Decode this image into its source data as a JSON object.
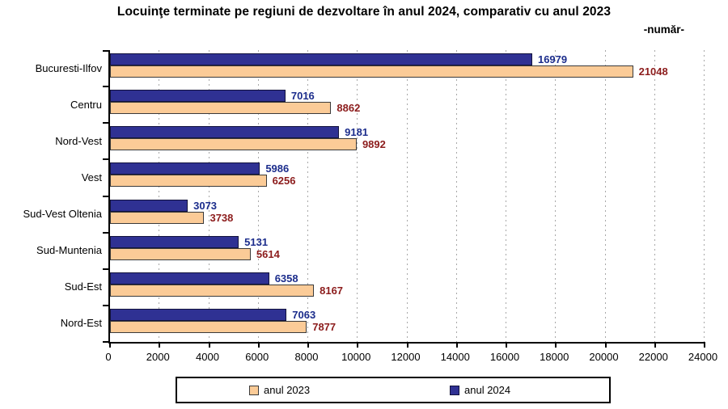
{
  "chart_data": {
    "type": "bar",
    "orientation": "horizontal",
    "title": "Locuinţe terminate pe regiuni de dezvoltare în anul 2024, comparativ cu anul 2023",
    "unit_label": "-număr-",
    "categories": [
      "Bucuresti-Ilfov",
      "Centru",
      "Nord-Vest",
      "Vest",
      "Sud-Vest Oltenia",
      "Sud-Muntenia",
      "Sud-Est",
      "Nord-Est"
    ],
    "series": [
      {
        "name": "anul 2023",
        "color": "#FBCB97",
        "border_color": "#3a3a3a",
        "label_color": "#8C1C1C",
        "values": [
          21048,
          8862,
          9892,
          6256,
          3738,
          5614,
          8167,
          7877
        ]
      },
      {
        "name": "anul 2024",
        "color": "#2F3193",
        "border_color": "#13133d",
        "label_color": "#1C2D8C",
        "values": [
          16979,
          7016,
          9181,
          5986,
          3073,
          5131,
          6358,
          7063
        ]
      }
    ],
    "row_order_top_to_bottom": [
      "anul 2024",
      "anul 2023"
    ],
    "x_ticks": [
      0,
      2000,
      4000,
      6000,
      8000,
      10000,
      12000,
      14000,
      16000,
      18000,
      20000,
      22000,
      24000
    ],
    "xlim": [
      0,
      24000
    ],
    "xlabel": "",
    "ylabel": "",
    "grid": "dotted-vertical",
    "grid_color": "#a8a8a8",
    "axis_color": "#000000",
    "legend_position": "bottom"
  }
}
